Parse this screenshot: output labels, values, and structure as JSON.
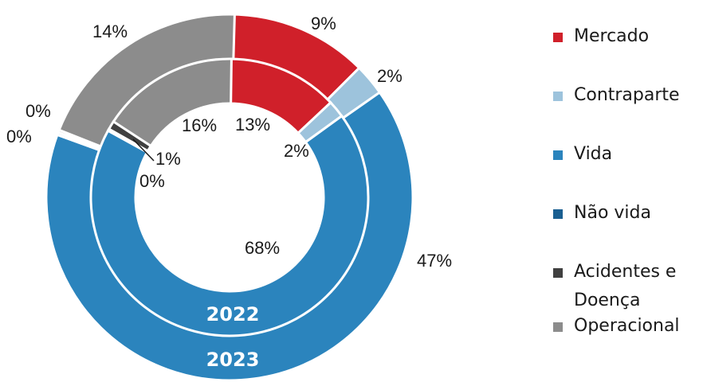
{
  "chart_data": {
    "type": "donut",
    "categories": [
      "Mercado",
      "Contraparte",
      "Vida",
      "Não vida",
      "Acidentes e Doença",
      "Operacional"
    ],
    "colors": {
      "Mercado": "#d0202a",
      "Contraparte": "#9dc3dc",
      "Vida": "#2b84bd",
      "Não vida": "#1a5f91",
      "Acidentes e Doença": "#404040",
      "Operacional": "#8c8c8c"
    },
    "series": [
      {
        "name": "2022",
        "ring": "inner",
        "values": [
          13,
          2,
          68,
          0,
          1,
          16
        ],
        "labels": [
          "13%",
          "2%",
          "68%",
          "0%",
          "1%",
          "16%"
        ]
      },
      {
        "name": "2023",
        "ring": "outer",
        "values": [
          9,
          2,
          47,
          0,
          0,
          14
        ],
        "labels": [
          "9%",
          "2%",
          "47%",
          "0%",
          "0%",
          "14%"
        ]
      }
    ],
    "legend": {
      "position": "right",
      "entries": [
        "Mercado",
        "Contraparte",
        "Vida",
        "Não vida",
        "Acidentes e",
        "Doença",
        "Operacional"
      ]
    }
  }
}
